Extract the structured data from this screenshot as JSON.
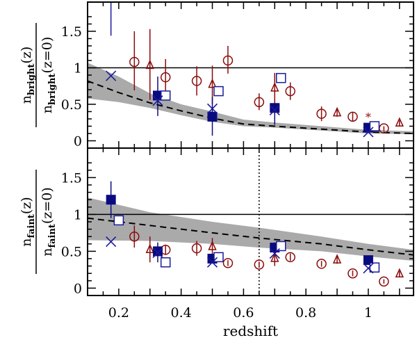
{
  "chart_data": [
    {
      "type": "scatter",
      "panel": "top",
      "ylabel": {
        "num": "n",
        "num_sub": "bright",
        "num_tail": "(z)",
        "den": "n",
        "den_sub": "bright",
        "den_tail": "(z=0)"
      },
      "xlim": [
        0.1,
        1.145
      ],
      "ylim": [
        -0.1,
        1.9
      ],
      "yticks": [
        0,
        0.5,
        1,
        1.5
      ],
      "ytick_labels": [
        "0",
        "0.5",
        "1",
        "1.5"
      ],
      "hline": 1,
      "model": {
        "x": [
          0.1,
          0.2,
          0.3,
          0.4,
          0.5,
          0.6,
          0.7,
          0.85,
          1.0,
          1.145
        ],
        "y": [
          0.82,
          0.66,
          0.52,
          0.41,
          0.31,
          0.23,
          0.2,
          0.16,
          0.12,
          0.1
        ],
        "upper": [
          1.07,
          0.88,
          0.65,
          0.5,
          0.4,
          0.29,
          0.25,
          0.2,
          0.15,
          0.13
        ],
        "lower": [
          0.58,
          0.53,
          0.45,
          0.35,
          0.26,
          0.2,
          0.18,
          0.14,
          0.1,
          0.09
        ]
      },
      "series": [
        {
          "name": "circles",
          "marker": "circle",
          "color": "#8b0a0a",
          "points": [
            [
              0.25,
              1.08,
              0.69,
              1.5
            ],
            [
              0.35,
              0.87,
              0.62,
              1.12
            ],
            [
              0.45,
              0.82,
              0.62,
              1.02
            ],
            [
              0.55,
              1.1,
              0.92,
              1.3
            ],
            [
              0.65,
              0.53,
              0.42,
              0.65
            ],
            [
              0.75,
              0.68,
              0.56,
              0.8
            ],
            [
              0.85,
              0.37,
              0.27,
              0.47
            ],
            [
              0.95,
              0.33,
              0.27,
              0.39
            ],
            [
              1.05,
              0.17,
              0.13,
              0.2
            ]
          ]
        },
        {
          "name": "triangles",
          "marker": "triangle",
          "color": "#8b0a0a",
          "points": [
            [
              0.3,
              1.03,
              0.56,
              1.53
            ],
            [
              0.5,
              0.77,
              0.5,
              1.03
            ],
            [
              0.7,
              0.72,
              0.45,
              0.93
            ],
            [
              0.9,
              0.38,
              0.33,
              0.43
            ],
            [
              1.1,
              0.24,
              0.2,
              0.28
            ]
          ]
        },
        {
          "name": "star",
          "marker": "star",
          "color": "#8b0a0a",
          "points": [
            [
              1.0,
              0.34,
              0.34,
              0.34
            ]
          ]
        },
        {
          "name": "filled squares",
          "marker": "fsquare",
          "color": "#0a0a80",
          "points": [
            [
              0.325,
              0.62,
              0.34,
              0.88
            ],
            [
              0.5,
              0.33,
              0.07,
              0.6
            ],
            [
              0.7,
              0.45,
              0.22,
              0.45
            ],
            [
              1.0,
              0.18,
              0.18,
              0.18
            ]
          ]
        },
        {
          "name": "open squares",
          "marker": "osquare",
          "color": "#1a1a9a",
          "points": [
            [
              0.35,
              0.62,
              0.62,
              0.62
            ],
            [
              0.52,
              0.68,
              0.68,
              0.68
            ],
            [
              0.72,
              0.86,
              0.86,
              0.86
            ],
            [
              1.02,
              0.2,
              0.2,
              0.2
            ]
          ]
        },
        {
          "name": "crosses",
          "marker": "cross",
          "color": "#1a1a9a",
          "points": [
            [
              0.175,
              0.89,
              1.44,
              1.9
            ],
            [
              0.325,
              0.55,
              0.55,
              0.55
            ],
            [
              0.5,
              0.44,
              0.44,
              0.44
            ],
            [
              0.7,
              0.42,
              0.42,
              0.42
            ],
            [
              1.0,
              0.12,
              0.12,
              0.12
            ]
          ]
        }
      ]
    },
    {
      "type": "scatter",
      "panel": "bottom",
      "ylabel": {
        "num": "n",
        "num_sub": "faint",
        "num_tail": "(z)",
        "den": "n",
        "den_sub": "faint",
        "den_tail": "(z=0)"
      },
      "xlabel": "redshift",
      "xlim": [
        0.1,
        1.145
      ],
      "ylim": [
        -0.1,
        1.9
      ],
      "xticks": [
        0.2,
        0.4,
        0.6,
        0.8,
        1.0
      ],
      "xtick_labels": [
        "0.2",
        "0.4",
        "0.6",
        "0.8",
        "1"
      ],
      "yticks": [
        0,
        0.5,
        1,
        1.5
      ],
      "ytick_labels": [
        "0",
        "0.5",
        "1",
        "1.5"
      ],
      "hline": 1,
      "vline": 0.65,
      "model": {
        "x": [
          0.1,
          0.3,
          0.5,
          0.65,
          0.85,
          1.0,
          1.145
        ],
        "y": [
          0.95,
          0.85,
          0.75,
          0.68,
          0.6,
          0.52,
          0.45
        ],
        "upper": [
          1.23,
          1.03,
          0.9,
          0.82,
          0.7,
          0.6,
          0.52
        ],
        "lower": [
          0.65,
          0.64,
          0.6,
          0.55,
          0.5,
          0.43,
          0.37
        ]
      },
      "series": [
        {
          "name": "circles",
          "marker": "circle",
          "color": "#8b0a0a",
          "points": [
            [
              0.25,
              0.7,
              0.55,
              0.85
            ],
            [
              0.35,
              0.52,
              0.45,
              0.59
            ],
            [
              0.45,
              0.54,
              0.44,
              0.64
            ],
            [
              0.55,
              0.34,
              0.3,
              0.38
            ],
            [
              0.65,
              0.32,
              0.28,
              0.36
            ],
            [
              0.75,
              0.42,
              0.37,
              0.47
            ],
            [
              0.85,
              0.33,
              0.29,
              0.37
            ],
            [
              0.95,
              0.2,
              0.16,
              0.24
            ],
            [
              1.05,
              0.09,
              0.06,
              0.12
            ]
          ]
        },
        {
          "name": "triangles",
          "marker": "triangle",
          "color": "#8b0a0a",
          "points": [
            [
              0.3,
              0.52,
              0.35,
              0.7
            ],
            [
              0.5,
              0.56,
              0.45,
              0.68
            ],
            [
              0.7,
              0.4,
              0.3,
              0.5
            ],
            [
              0.9,
              0.38,
              0.33,
              0.44
            ],
            [
              1.1,
              0.19,
              0.15,
              0.23
            ]
          ]
        },
        {
          "name": "star",
          "marker": "star",
          "color": "#8b0a0a",
          "points": [
            [
              1.0,
              0.35,
              0.35,
              0.35
            ]
          ]
        },
        {
          "name": "filled squares",
          "marker": "fsquare",
          "color": "#0a0a80",
          "points": [
            [
              0.175,
              1.2,
              0.95,
              1.45
            ],
            [
              0.325,
              0.5,
              0.35,
              0.62
            ],
            [
              0.5,
              0.4,
              0.4,
              0.4
            ],
            [
              0.7,
              0.55,
              0.5,
              0.62
            ],
            [
              1.0,
              0.38,
              0.38,
              0.38
            ]
          ]
        },
        {
          "name": "open squares",
          "marker": "osquare",
          "color": "#1a1a9a",
          "points": [
            [
              0.2,
              0.92,
              0.92,
              0.92
            ],
            [
              0.35,
              0.35,
              0.35,
              0.35
            ],
            [
              0.52,
              0.42,
              0.42,
              0.42
            ],
            [
              0.72,
              0.57,
              0.57,
              0.57
            ],
            [
              1.02,
              0.28,
              0.28,
              0.28
            ]
          ]
        },
        {
          "name": "crosses",
          "marker": "cross",
          "color": "#1a1a9a",
          "points": [
            [
              0.175,
              0.63,
              0.63,
              0.63
            ],
            [
              0.325,
              0.48,
              0.48,
              0.48
            ],
            [
              0.5,
              0.35,
              0.35,
              0.35
            ],
            [
              0.7,
              0.47,
              0.47,
              0.47
            ],
            [
              1.0,
              0.27,
              0.27,
              0.27
            ]
          ]
        }
      ]
    }
  ]
}
